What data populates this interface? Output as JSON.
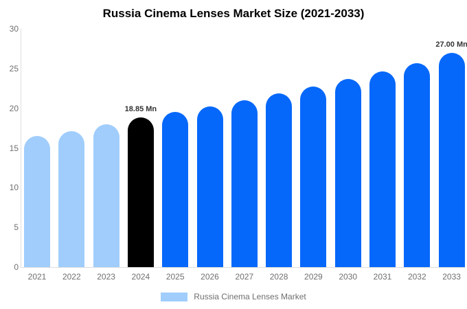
{
  "chart_data": {
    "type": "bar",
    "title": "Russia Cinema Lenses Market Size (2021-2033)",
    "categories": [
      "2021",
      "2022",
      "2023",
      "2024",
      "2025",
      "2026",
      "2027",
      "2028",
      "2029",
      "2030",
      "2031",
      "2032",
      "2033"
    ],
    "values": [
      16.5,
      17.15,
      17.95,
      18.85,
      19.5,
      20.25,
      21.0,
      21.9,
      22.7,
      23.65,
      24.6,
      25.7,
      27.0
    ],
    "bar_colors": [
      "#A0CDFC",
      "#A0CDFC",
      "#A0CDFC",
      "#000000",
      "#0668FA",
      "#0668FA",
      "#0668FA",
      "#0668FA",
      "#0668FA",
      "#0668FA",
      "#0668FA",
      "#0668FA",
      "#0668FA"
    ],
    "annotations": [
      {
        "category": "2024",
        "text": "18.85 Mn"
      },
      {
        "category": "2033",
        "text": "27.00 Mn"
      }
    ],
    "xlabel": "",
    "ylabel": "",
    "ylim": [
      0,
      30
    ],
    "yticks": [
      0,
      5,
      10,
      15,
      20,
      25,
      30
    ],
    "grid": false,
    "legend": {
      "label": "Russia Cinema Lenses Market",
      "swatch_color": "#A0CDFC",
      "position": "bottom"
    },
    "palette": {
      "light_blue": "#A0CDFC",
      "highlight_black": "#000000",
      "blue": "#0668FA",
      "axis_line": "#DDDDDD",
      "tick_text": "#6F6F6F",
      "annotation_text": "#333333",
      "legend_text": "#6E6E6E",
      "background": "#FFFFFF"
    }
  }
}
